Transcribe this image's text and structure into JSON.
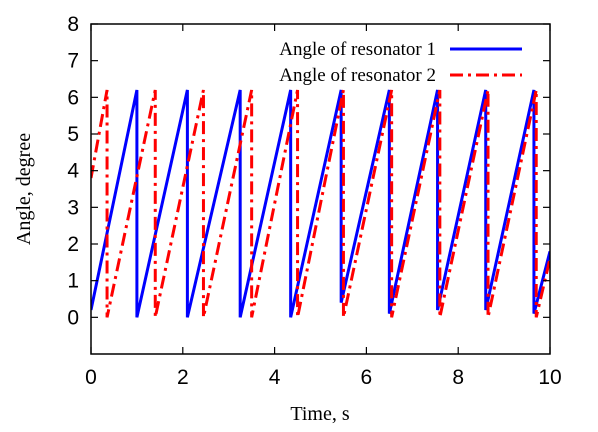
{
  "chart_data": {
    "type": "line",
    "xlabel": "Time, s",
    "ylabel": "Angle, degree",
    "xlim": [
      0,
      10
    ],
    "ylim": [
      -1,
      8
    ],
    "xticks": [
      "0",
      "2",
      "4",
      "6",
      "8",
      "10"
    ],
    "yticks": [
      "0",
      "1",
      "2",
      "3",
      "4",
      "5",
      "6",
      "7",
      "8"
    ],
    "grid": false,
    "legend_position": "top-right",
    "series": [
      {
        "name": "Angle of resonator 1",
        "color": "#0000ff",
        "style": "solid",
        "x": [
          0.0,
          1.0,
          1.0,
          2.1,
          2.1,
          3.25,
          3.25,
          4.35,
          4.35,
          5.45,
          5.45,
          6.5,
          6.5,
          7.55,
          7.55,
          8.6,
          8.6,
          9.65,
          9.65,
          10.0
        ],
        "y": [
          0.2,
          6.2,
          0.0,
          6.2,
          0.0,
          6.2,
          0.0,
          6.2,
          0.0,
          6.2,
          0.4,
          6.2,
          0.1,
          6.2,
          0.2,
          6.2,
          0.2,
          6.2,
          0.1,
          1.8
        ]
      },
      {
        "name": "Angle of resonator 2",
        "color": "#ff0000",
        "style": "dash-dot",
        "x": [
          0.0,
          0.35,
          0.35,
          1.4,
          1.4,
          2.45,
          2.45,
          3.5,
          3.5,
          4.5,
          4.5,
          5.5,
          5.5,
          6.55,
          6.55,
          7.6,
          7.6,
          8.65,
          8.65,
          9.7,
          9.7,
          10.0
        ],
        "y": [
          3.8,
          6.2,
          0.0,
          6.2,
          0.0,
          6.2,
          0.0,
          6.2,
          0.0,
          6.2,
          0.0,
          6.2,
          0.0,
          6.2,
          0.0,
          6.2,
          0.0,
          6.2,
          0.0,
          6.2,
          0.0,
          1.6
        ]
      }
    ]
  }
}
